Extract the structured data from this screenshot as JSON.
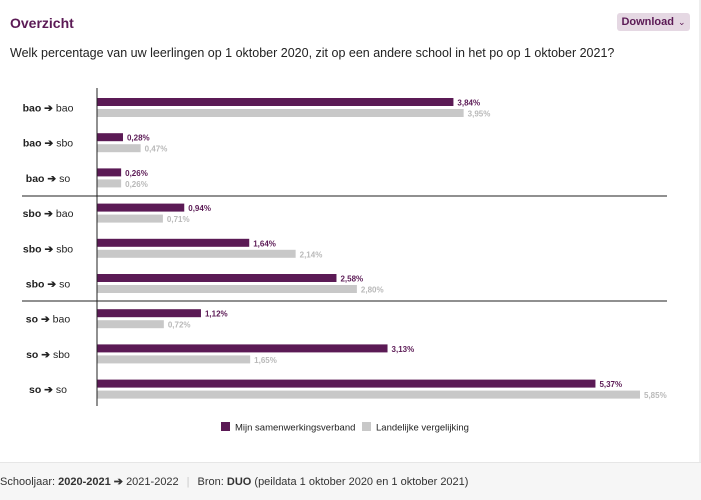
{
  "header": {
    "title": "Overzicht",
    "download_label": "Download",
    "download_chevron": "⌄"
  },
  "question": "Welk percentage van uw leerlingen op 1 oktober 2020, zit op een andere school in het po op 1 oktober 2021?",
  "colors": {
    "series_primary": "#5b1a55",
    "series_secondary": "#c8c8c8",
    "label_primary": "#5b1a55",
    "label_secondary": "#b9b9b9",
    "axis": "#222222"
  },
  "chart_data": {
    "type": "bar",
    "orientation": "horizontal",
    "categories": [
      {
        "from": "bao",
        "to": "bao"
      },
      {
        "from": "bao",
        "to": "sbo"
      },
      {
        "from": "bao",
        "to": "so"
      },
      {
        "from": "sbo",
        "to": "bao"
      },
      {
        "from": "sbo",
        "to": "sbo"
      },
      {
        "from": "sbo",
        "to": "so"
      },
      {
        "from": "so",
        "to": "bao"
      },
      {
        "from": "so",
        "to": "sbo"
      },
      {
        "from": "so",
        "to": "so"
      }
    ],
    "arrow": "➔",
    "groups": [
      [
        "bao→bao",
        "bao→sbo",
        "bao→so"
      ],
      [
        "sbo→bao",
        "sbo→sbo",
        "sbo→so"
      ],
      [
        "so→bao",
        "so→sbo",
        "so→so"
      ]
    ],
    "series": [
      {
        "name": "Mijn samenwerkingsverband",
        "values": [
          3.84,
          0.28,
          0.26,
          0.94,
          1.64,
          2.58,
          1.12,
          3.13,
          5.37
        ],
        "labels": [
          "3,84%",
          "0,28%",
          "0,26%",
          "0,94%",
          "1,64%",
          "2,58%",
          "1,12%",
          "3,13%",
          "5,37%"
        ]
      },
      {
        "name": "Landelijke vergelijking",
        "values": [
          3.95,
          0.47,
          0.26,
          0.71,
          2.14,
          2.8,
          0.72,
          1.65,
          5.85
        ],
        "labels": [
          "3,95%",
          "0,47%",
          "0,26%",
          "0,71%",
          "2,14%",
          "2,80%",
          "0,72%",
          "1,65%",
          "5,85%"
        ]
      }
    ],
    "legend_position": "bottom-center",
    "grid": false
  },
  "footer": {
    "schooljaar_label": "Schooljaar:",
    "schooljaar_from": "2020-2021",
    "arrow": "➔",
    "schooljaar_to": "2021-2022",
    "bron_label": "Bron:",
    "bron_value": "DUO",
    "bron_detail": "(peildata 1 oktober 2020 en 1 oktober 2021)"
  }
}
